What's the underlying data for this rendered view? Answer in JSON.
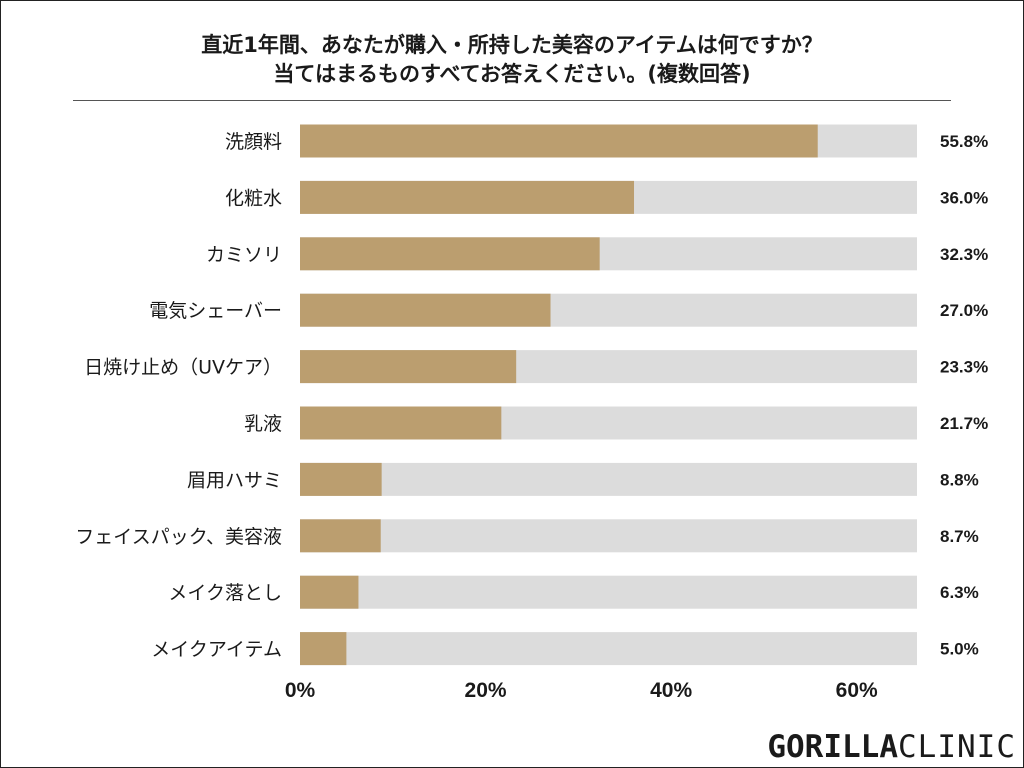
{
  "chart_data": {
    "type": "bar",
    "orientation": "horizontal",
    "title_lines": [
      "直近1年間、あなたが購入・所持した美容のアイテムは何ですか？",
      "当てはまるものすべてお答えください。(複数回答)"
    ],
    "categories": [
      "洗顔料",
      "化粧水",
      "カミソリ",
      "電気シェーバー",
      "日焼け止め（UVケア）",
      "乳液",
      "眉用ハサミ",
      "フェイスパック、美容液",
      "メイク落とし",
      "メイクアイテム"
    ],
    "values": [
      55.8,
      36.0,
      32.3,
      27.0,
      23.3,
      21.7,
      8.8,
      8.7,
      6.3,
      5.0
    ],
    "value_labels": [
      "55.8%",
      "36.0%",
      "32.3%",
      "27.0%",
      "23.3%",
      "21.7%",
      "8.8%",
      "8.7%",
      "6.3%",
      "5.0%"
    ],
    "xticks": [
      "0%",
      "20%",
      "40%",
      "60%"
    ],
    "xtick_values": [
      0,
      20,
      40,
      60
    ],
    "xlim": [
      0,
      66.5
    ],
    "grid": false,
    "colors": {
      "bar": "#bb9e6f",
      "track": "#dcdcdc",
      "text": "#1a1a1a"
    }
  },
  "logo": {
    "bold": "GORILLA",
    "thin": "CLINIC"
  }
}
